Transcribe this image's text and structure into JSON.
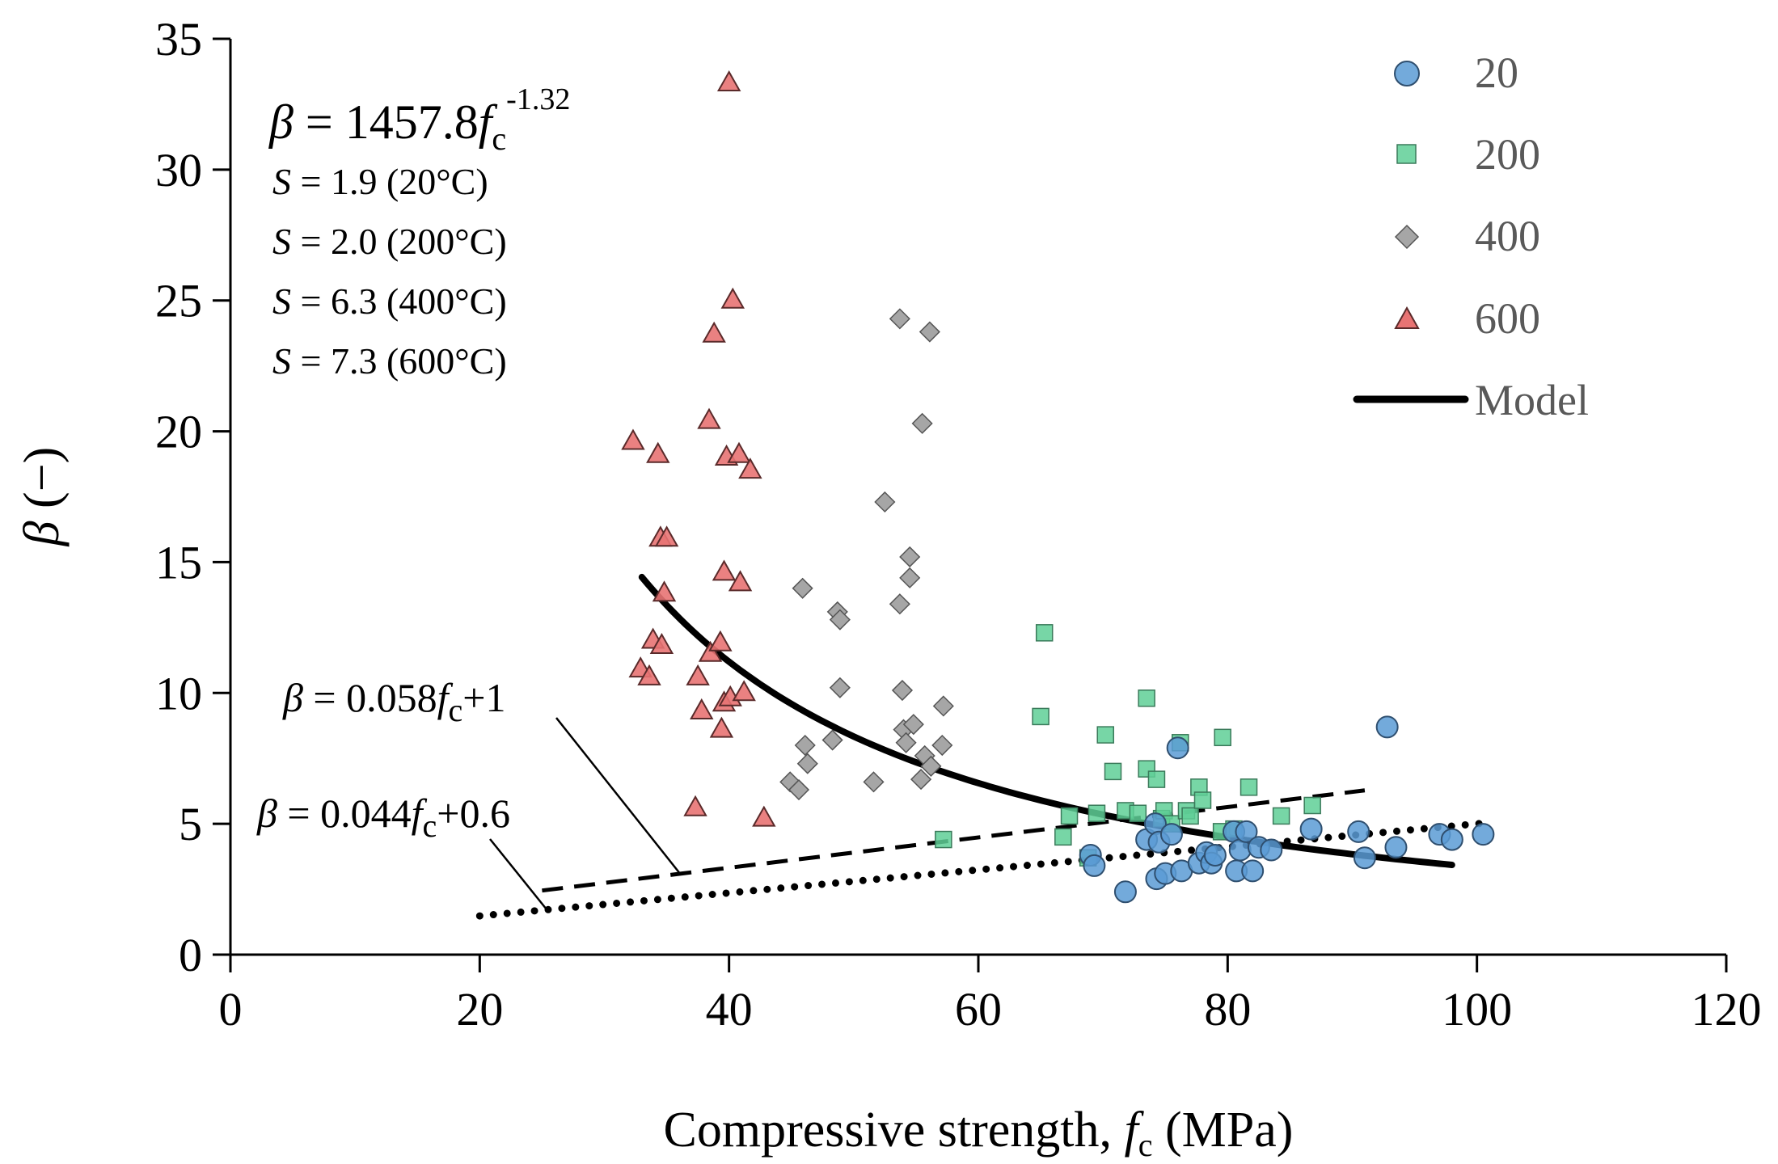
{
  "chart_data": {
    "type": "scatter",
    "title": "",
    "xlabel": "Compressive strength, fc (MPa)",
    "xlabel_parts": {
      "a": "Compressive strength, ",
      "b": "f",
      "c": "c",
      "d": " (MPa)"
    },
    "ylabel": "β (−)",
    "ylabel_parts": {
      "a": "β",
      "b": " (−)"
    },
    "xlim": [
      0,
      120
    ],
    "ylim": [
      0,
      35
    ],
    "x_ticks": [
      0,
      20,
      40,
      60,
      80,
      100,
      120
    ],
    "y_ticks": [
      0,
      5,
      10,
      15,
      20,
      25,
      30,
      35
    ],
    "grid": false,
    "legend_position": "top-right",
    "series": [
      {
        "name": "20",
        "marker": "circle",
        "color": "#5b9bd5",
        "points": [
          [
            69,
            3.8
          ],
          [
            69.3,
            3.4
          ],
          [
            71.8,
            2.4
          ],
          [
            73.5,
            4.4
          ],
          [
            74.2,
            5.0
          ],
          [
            74.3,
            2.9
          ],
          [
            74.5,
            4.3
          ],
          [
            75,
            3.1
          ],
          [
            75.5,
            4.6
          ],
          [
            76,
            7.9
          ],
          [
            76.3,
            3.2
          ],
          [
            77.7,
            3.5
          ],
          [
            78.3,
            3.9
          ],
          [
            78.7,
            3.5
          ],
          [
            79,
            3.8
          ],
          [
            80.5,
            4.7
          ],
          [
            80.7,
            3.2
          ],
          [
            81,
            4.0
          ],
          [
            81.5,
            4.7
          ],
          [
            82,
            3.2
          ],
          [
            82.5,
            4.1
          ],
          [
            83.5,
            4.0
          ],
          [
            86.7,
            4.8
          ],
          [
            90.5,
            4.7
          ],
          [
            91,
            3.7
          ],
          [
            92.8,
            8.7
          ],
          [
            93.5,
            4.1
          ],
          [
            97,
            4.6
          ],
          [
            98,
            4.4
          ],
          [
            100.5,
            4.6
          ]
        ]
      },
      {
        "name": "200",
        "marker": "square",
        "color": "#5fcf96",
        "points": [
          [
            57.2,
            4.4
          ],
          [
            65,
            9.1
          ],
          [
            65.3,
            12.3
          ],
          [
            66.8,
            4.5
          ],
          [
            67.3,
            5.3
          ],
          [
            68.8,
            3.7
          ],
          [
            69.5,
            5.4
          ],
          [
            70.2,
            8.4
          ],
          [
            70.8,
            7.0
          ],
          [
            71.8,
            5.5
          ],
          [
            72.8,
            5.4
          ],
          [
            73.5,
            7.1
          ],
          [
            73.5,
            9.8
          ],
          [
            74.3,
            6.7
          ],
          [
            74.7,
            5.2
          ],
          [
            74.9,
            5.5
          ],
          [
            75.5,
            5.0
          ],
          [
            76.2,
            8.1
          ],
          [
            76.7,
            5.5
          ],
          [
            77,
            5.3
          ],
          [
            77.7,
            6.4
          ],
          [
            78,
            5.9
          ],
          [
            79.5,
            4.7
          ],
          [
            79.6,
            8.3
          ],
          [
            80.5,
            4.8
          ],
          [
            81.7,
            6.4
          ],
          [
            84.3,
            5.3
          ],
          [
            86.8,
            5.7
          ]
        ]
      },
      {
        "name": "400",
        "marker": "diamond",
        "color": "#a6a6a6",
        "points": [
          [
            44.9,
            6.6
          ],
          [
            45.6,
            6.3
          ],
          [
            45.9,
            14.0
          ],
          [
            46.1,
            8.0
          ],
          [
            46.3,
            7.3
          ],
          [
            48.3,
            8.2
          ],
          [
            48.7,
            13.1
          ],
          [
            48.9,
            12.8
          ],
          [
            48.9,
            10.2
          ],
          [
            51.6,
            6.6
          ],
          [
            52.5,
            17.3
          ],
          [
            53.7,
            24.3
          ],
          [
            53.7,
            13.4
          ],
          [
            53.9,
            10.1
          ],
          [
            54,
            8.6
          ],
          [
            54.2,
            8.1
          ],
          [
            54.5,
            14.4
          ],
          [
            54.5,
            15.2
          ],
          [
            54.8,
            8.8
          ],
          [
            55.4,
            6.7
          ],
          [
            55.5,
            20.3
          ],
          [
            55.7,
            7.6
          ],
          [
            56.1,
            23.8
          ],
          [
            56.2,
            7.2
          ],
          [
            57.1,
            8.0
          ],
          [
            57.2,
            9.5
          ]
        ]
      },
      {
        "name": "600",
        "marker": "triangle",
        "color": "#e87373",
        "points": [
          [
            32.3,
            19.6
          ],
          [
            32.9,
            10.9
          ],
          [
            33.6,
            10.6
          ],
          [
            33.9,
            12.0
          ],
          [
            34.3,
            19.1
          ],
          [
            34.5,
            15.9
          ],
          [
            34.6,
            11.8
          ],
          [
            34.8,
            13.8
          ],
          [
            35,
            15.9
          ],
          [
            37.3,
            5.6
          ],
          [
            37.5,
            10.6
          ],
          [
            37.8,
            9.3
          ],
          [
            38.4,
            20.4
          ],
          [
            38.5,
            11.5
          ],
          [
            38.8,
            23.7
          ],
          [
            39.3,
            11.9
          ],
          [
            39.4,
            8.6
          ],
          [
            39.6,
            14.6
          ],
          [
            39.6,
            9.6
          ],
          [
            39.8,
            19.0
          ],
          [
            40,
            33.3
          ],
          [
            40.1,
            9.8
          ],
          [
            40.3,
            25.0
          ],
          [
            40.8,
            19.1
          ],
          [
            40.9,
            14.2
          ],
          [
            41.2,
            10.0
          ],
          [
            41.7,
            18.5
          ],
          [
            42.8,
            5.2
          ]
        ]
      }
    ],
    "model": {
      "name": "Model",
      "coefficient": 1457.8,
      "exponent": -1.32,
      "x_range": [
        33,
        98
      ]
    },
    "lines": [
      {
        "name": "β = 0.058fc+1",
        "slope": 0.058,
        "intercept": 1,
        "x_range": [
          25,
          91
        ],
        "style": "dashed"
      },
      {
        "name": "β = 0.044fc+0.6",
        "slope": 0.044,
        "intercept": 0.6,
        "x_range": [
          20,
          101
        ],
        "style": "dotted"
      }
    ],
    "annotations": {
      "model_eq": {
        "beta": "β",
        "eq": " = 1457.8",
        "f": "f",
        "sub": "c",
        "exp": "-1.32"
      },
      "s_values": [
        {
          "s": "S",
          "text": " = 1.9 (20°C)"
        },
        {
          "s": "S",
          "text": " = 2.0 (200°C)"
        },
        {
          "s": "S",
          "text": " = 6.3 (400°C)"
        },
        {
          "s": "S",
          "text": " = 7.3 (600°C)"
        }
      ],
      "dash_eq": {
        "beta": "β",
        "a": " = 0.058",
        "f": "f",
        "sub": "c",
        "b": "+1"
      },
      "dot_eq": {
        "beta": "β",
        "a": " = 0.044",
        "f": "f",
        "sub": "c",
        "b": "+0.6"
      }
    }
  }
}
